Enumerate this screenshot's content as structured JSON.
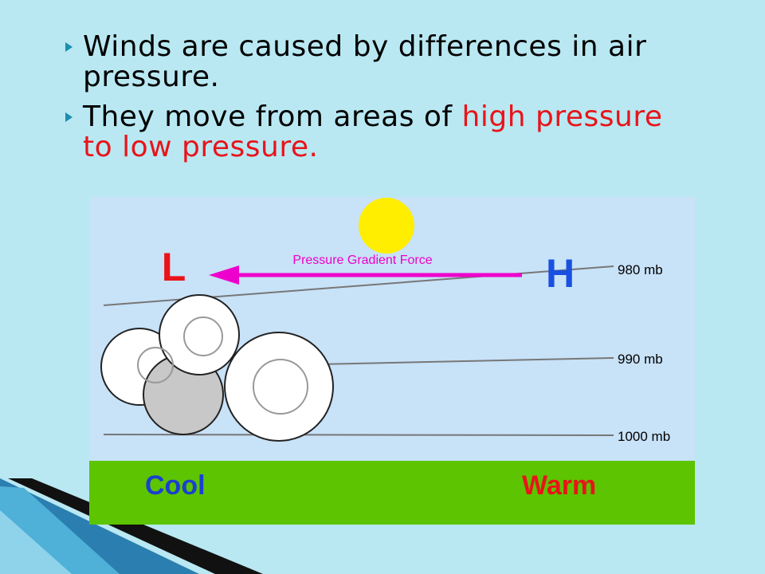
{
  "bullets": [
    {
      "text": "Winds are caused by differences in air pressure."
    },
    {
      "text": "They move from areas of ",
      "highlight": "high pressure to low pressure."
    }
  ],
  "diagram": {
    "low_label": "L",
    "high_label": "H",
    "arrow_label": "Pressure Gradient Force",
    "isobars": [
      "980 mb",
      "990 mb",
      "1000 mb"
    ],
    "ground_left": "Cool",
    "ground_right": "Warm"
  }
}
